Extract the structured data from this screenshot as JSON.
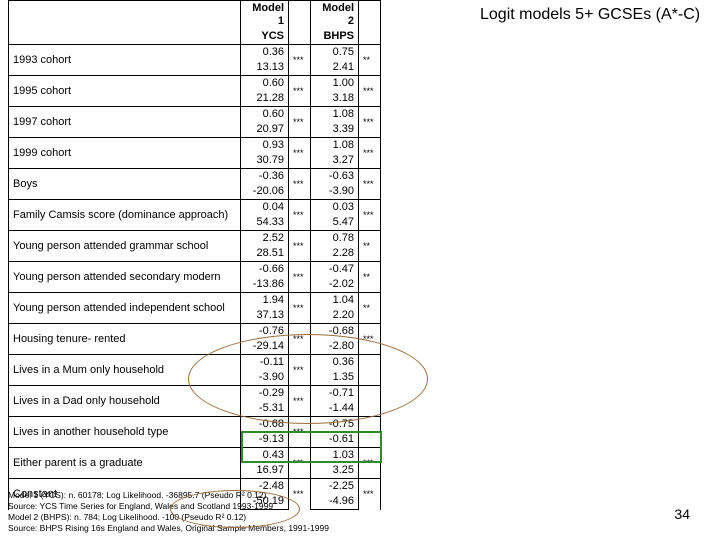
{
  "title": "Logit models 5+ GCSEs (A*-C)",
  "pageNumber": "34",
  "headers": {
    "label": "",
    "m1": "Model 1\nYCS",
    "m2": "Model 2\nBHPS"
  },
  "rows": [
    {
      "label": "1993 cohort",
      "v1": "0.36",
      "s1": "***",
      "v2": "0.75",
      "s2": "**",
      "v1b": "13.13",
      "v2b": "2.41"
    },
    {
      "label": "1995 cohort",
      "v1": "0.60",
      "s1": "***",
      "v2": "1.00",
      "s2": "***",
      "v1b": "21.28",
      "v2b": "3.18"
    },
    {
      "label": "1997 cohort",
      "v1": "0.60",
      "s1": "***",
      "v2": "1.08",
      "s2": "***",
      "v1b": "20.97",
      "v2b": "3.39"
    },
    {
      "label": "1999 cohort",
      "v1": "0.93",
      "s1": "***",
      "v2": "1.08",
      "s2": "***",
      "v1b": "30.79",
      "v2b": "3.27"
    },
    {
      "label": "Boys",
      "v1": "-0.36",
      "s1": "***",
      "v2": "-0.63",
      "s2": "***",
      "v1b": "-20.06",
      "v2b": "-3.90"
    },
    {
      "label": "Family Camsis score (dominance approach)",
      "v1": "0.04",
      "s1": "***",
      "v2": "0.03",
      "s2": "***",
      "v1b": "54.33",
      "v2b": "5.47"
    },
    {
      "label": "Young person attended grammar school",
      "v1": "2.52",
      "s1": "***",
      "v2": "0.78",
      "s2": "**",
      "v1b": "28.51",
      "v2b": "2.28"
    },
    {
      "label": "Young person attended secondary modern",
      "v1": "-0.66",
      "s1": "***",
      "v2": "-0.47",
      "s2": "**",
      "v1b": "-13.86",
      "v2b": "-2.02"
    },
    {
      "label": "Young person attended independent school",
      "v1": "1.94",
      "s1": "***",
      "v2": "1.04",
      "s2": "**",
      "v1b": "37.13",
      "v2b": "2.20"
    },
    {
      "label": "Housing tenure- rented",
      "v1": "-0.76",
      "s1": "***",
      "v2": "-0.68",
      "s2": "***",
      "v1b": "-29.14",
      "v2b": "-2.80"
    },
    {
      "label": "Lives in a Mum only household",
      "v1": "-0.11",
      "s1": "***",
      "v2": "0.36",
      "s2": "",
      "v1b": "-3.90",
      "v2b": "1.35"
    },
    {
      "label": "Lives in a Dad only household",
      "v1": "-0.29",
      "s1": "***",
      "v2": "-0.71",
      "s2": "",
      "v1b": "-5.31",
      "v2b": "-1.44"
    },
    {
      "label": "Lives in another household type",
      "v1": "-0.68",
      "s1": "***",
      "v2": "-0.75",
      "s2": "",
      "v1b": "-9.13",
      "v2b": "-0.61"
    },
    {
      "label": "Either parent is a graduate",
      "v1": "0.43",
      "s1": "***",
      "v2": "1.03",
      "s2": "***",
      "v1b": "16.97",
      "v2b": "3.25"
    },
    {
      "label": "Constant",
      "v1": "-2.48",
      "s1": "***",
      "v2": "-2.25",
      "s2": "***",
      "v1b": "-50.19",
      "v2b": "-4.96"
    }
  ],
  "footer": {
    "l1": "Model 1 (YCS): n. 60178; Log Likelihood. -36895.7 (Pseudo R² 0.12)",
    "l2": "Source: YCS Time Series for England, Wales and Scotland 1993-1999",
    "l3": "Model 2 (BHPS): n. 784; Log Likelihood. -100 (Pseudo R² 0.12)",
    "l4": "Source: BHPS Rising 16s England and Wales, Original Sample Members, 1991-1999"
  }
}
